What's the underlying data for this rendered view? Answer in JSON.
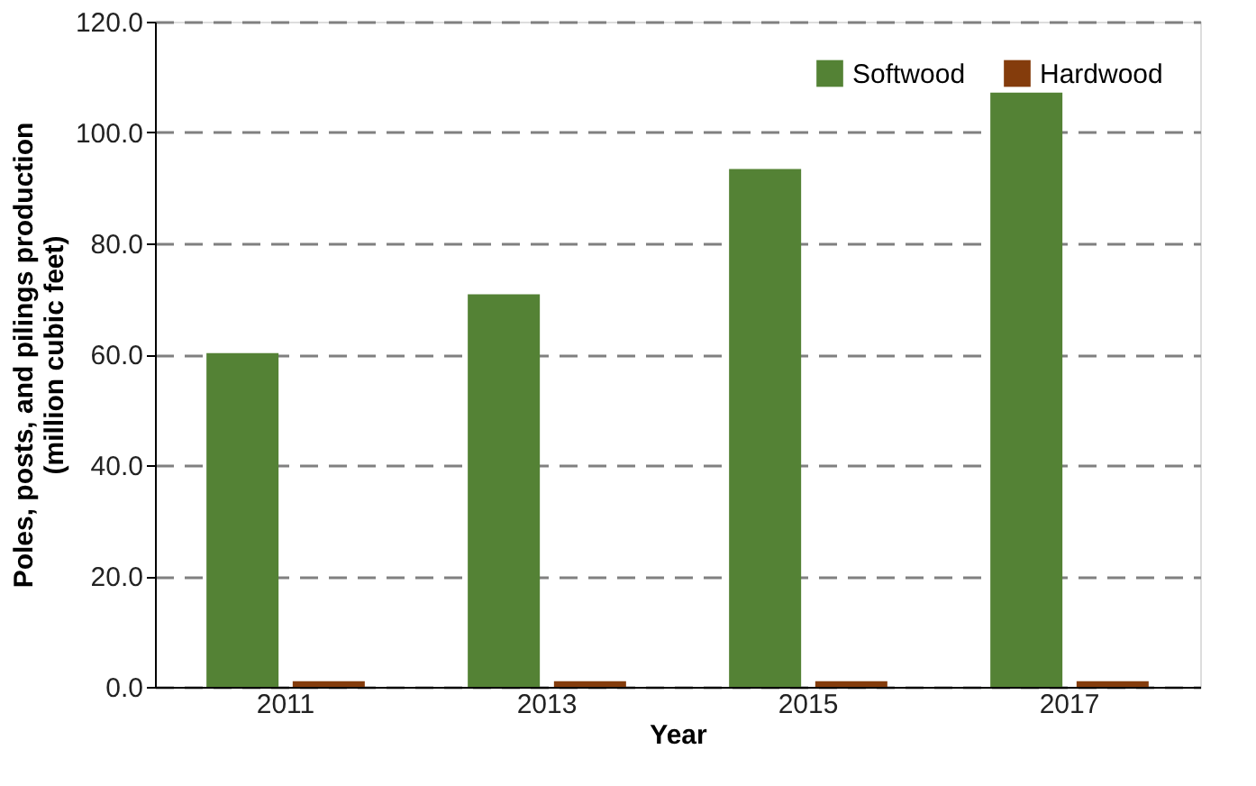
{
  "chart_data": {
    "type": "bar",
    "xlabel": "Year",
    "ylabel": "Poles, posts, and pilings production\n(million cubic feet)",
    "categories": [
      "2011",
      "2013",
      "2015",
      "2017"
    ],
    "series": [
      {
        "name": "Softwood",
        "color": "#548235",
        "values": [
          60.2,
          70.8,
          93.4,
          107.2
        ]
      },
      {
        "name": "Hardwood",
        "color": "#843c0c",
        "values": [
          1.0,
          1.0,
          1.0,
          1.0
        ]
      }
    ],
    "ylim": [
      0,
      120
    ],
    "yticks": [
      {
        "value": 0,
        "label": "0.0"
      },
      {
        "value": 20,
        "label": "20.0"
      },
      {
        "value": 40,
        "label": "40.0"
      },
      {
        "value": 60,
        "label": "60.0"
      },
      {
        "value": 80,
        "label": "80.0"
      },
      {
        "value": 100,
        "label": "100.0"
      },
      {
        "value": 120,
        "label": "120.0"
      }
    ],
    "grid": "y",
    "legend": "top right"
  }
}
